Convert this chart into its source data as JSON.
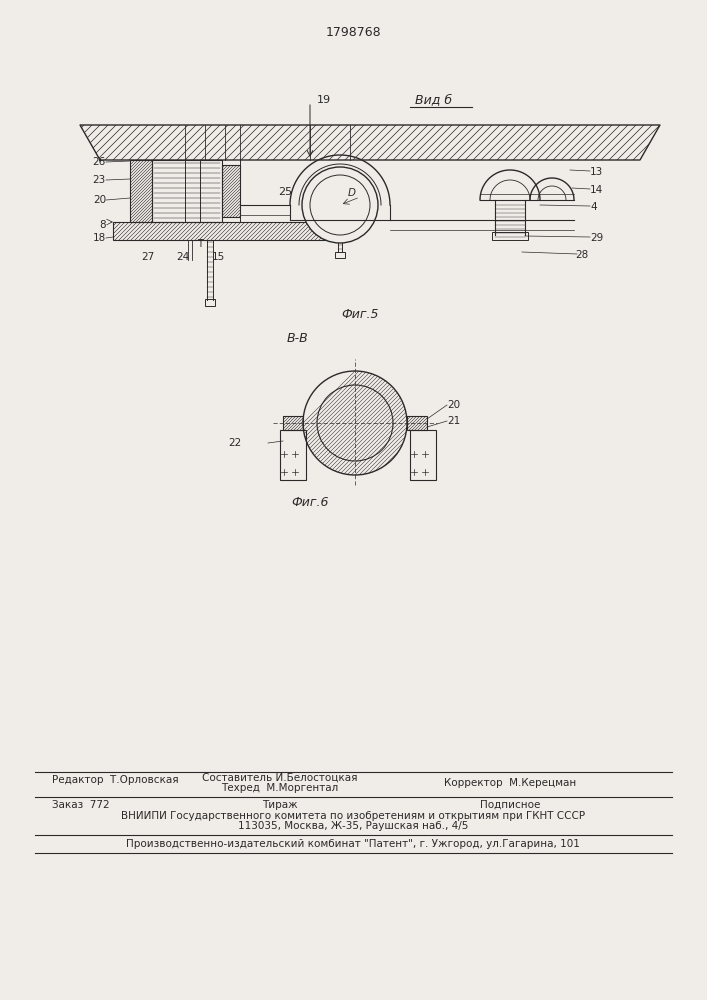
{
  "title": "1798768",
  "bg_color": "#f0ede8",
  "line_color": "#2a2a2a",
  "fig5_label": "Фиг.5",
  "fig6_label": "Фиг.6",
  "vid_b_label": "Вид б",
  "view_cut_label": "В-В",
  "footer_line1_left": "Редактор  Т.Орловская",
  "footer_line1_center": "Составитель И.Белостоцкая",
  "footer_line2_center": "Техред  М.Моргентал",
  "footer_line2_right": "Корректор  М.Керецман",
  "footer_line3_left": "Заказ  772",
  "footer_line3_center": "Тираж",
  "footer_line3_right": "Подписное",
  "footer_line4": "ВНИИПИ Государственного комитета по изобретениям и открытиям при ГКНТ СССР",
  "footer_line5": "113035, Москва, Ж-35, Раушская наб., 4/5",
  "footer_line6": "Производственно-издательский комбинат \"Патент\", г. Ужгород, ул.Гагарина, 101"
}
